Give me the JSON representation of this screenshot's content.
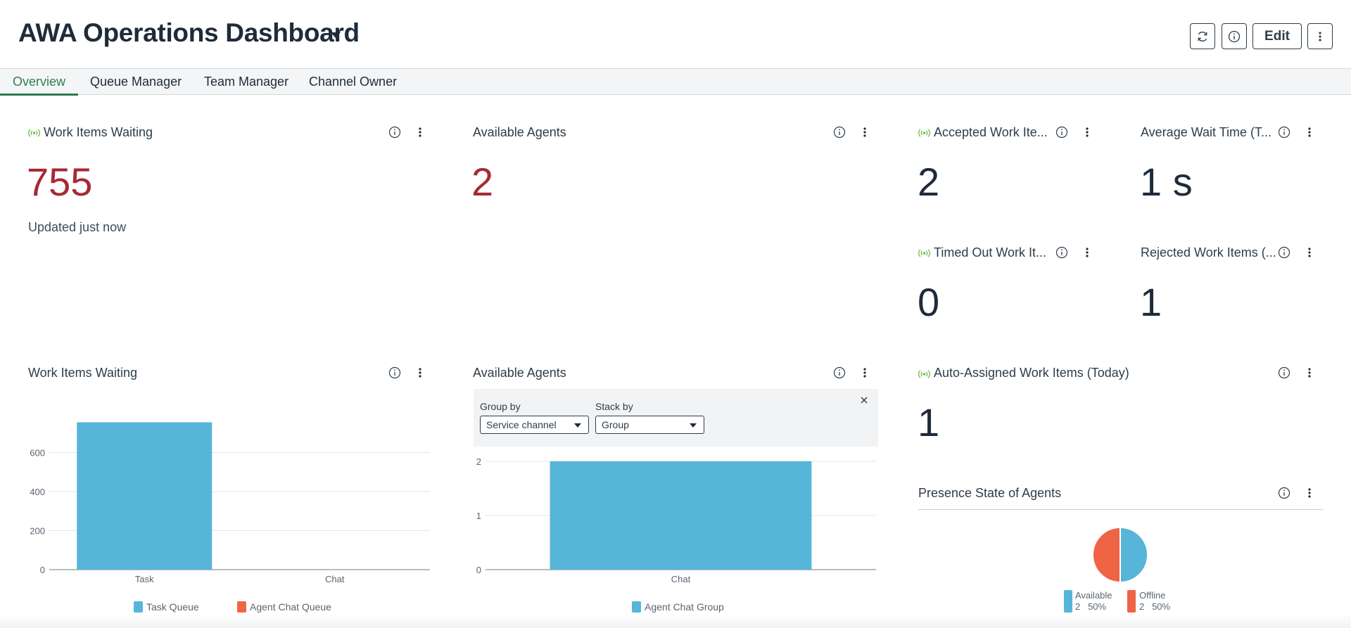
{
  "header": {
    "title": "AWA Operations Dashboard",
    "edit_label": "Edit"
  },
  "tabs": [
    {
      "label": "Overview",
      "active": true
    },
    {
      "label": "Queue Manager",
      "active": false
    },
    {
      "label": "Team Manager",
      "active": false
    },
    {
      "label": "Channel Owner",
      "active": false
    }
  ],
  "widgets": {
    "work_items_waiting": {
      "title": "Work Items Waiting",
      "value": "755",
      "updated": "Updated just now"
    },
    "available_agents": {
      "title": "Available Agents",
      "value": "2"
    },
    "accepted": {
      "title": "Accepted Work Ite...",
      "value": "2"
    },
    "avg_wait": {
      "title": "Average Wait Time (T...",
      "value": "1 s"
    },
    "timed_out": {
      "title": "Timed Out Work It...",
      "value": "0"
    },
    "rejected": {
      "title": "Rejected Work Items (...",
      "value": "1"
    },
    "auto_assigned": {
      "title": "Auto-Assigned Work Items (Today)",
      "value": "1"
    },
    "presence": {
      "title": "Presence State of Agents"
    }
  },
  "chart_waiting": {
    "title": "Work Items Waiting",
    "legend": [
      "Task Queue",
      "Agent Chat Queue"
    ]
  },
  "chart_agents": {
    "title": "Available Agents",
    "group_by_label": "Group by",
    "group_by_value": "Service channel",
    "stack_by_label": "Stack by",
    "stack_by_value": "Group",
    "legend": [
      "Agent Chat Group"
    ]
  },
  "pie_legend": {
    "available_label": "Available",
    "available_detail": "2   50%",
    "offline_label": "Offline",
    "offline_detail": "2   50%"
  },
  "colors": {
    "blue": "#56b5d8",
    "orange": "#ef6445",
    "red_value": "#a52a35",
    "accent": "#2e7d4f",
    "live": "#6cbd45"
  },
  "chart_data": [
    {
      "type": "bar",
      "title": "Work Items Waiting",
      "categories": [
        "Task",
        "Chat"
      ],
      "series": [
        {
          "name": "Task Queue",
          "values": [
            755,
            0
          ]
        },
        {
          "name": "Agent Chat Queue",
          "values": [
            0,
            0
          ]
        }
      ],
      "yticks": [
        0,
        200,
        400,
        600
      ],
      "ylim": [
        0,
        800
      ],
      "grid": true,
      "legend": "bottom"
    },
    {
      "type": "bar",
      "title": "Available Agents",
      "categories": [
        "Chat"
      ],
      "series": [
        {
          "name": "Agent Chat Group",
          "values": [
            2
          ]
        }
      ],
      "yticks": [
        0,
        1,
        2
      ],
      "ylim": [
        0,
        2
      ],
      "grid": true,
      "legend": "bottom"
    },
    {
      "type": "pie",
      "title": "Presence State of Agents",
      "labels": [
        "Available",
        "Offline"
      ],
      "values": [
        2,
        2
      ],
      "percentages": [
        "50%",
        "50%"
      ],
      "legend": "bottom"
    }
  ]
}
